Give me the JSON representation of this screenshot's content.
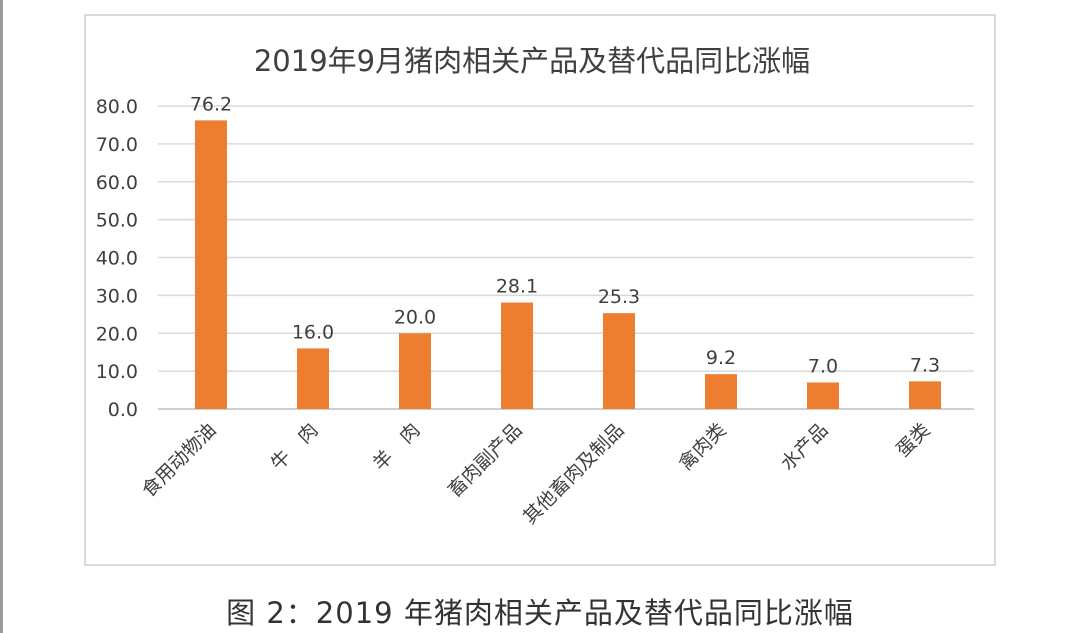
{
  "chart_data": {
    "type": "bar",
    "title": "2019年9月猪肉相关产品及替代品同比涨幅",
    "xlabel": "",
    "ylabel": "",
    "ylim": [
      0,
      80
    ],
    "yticks": [
      "0.0",
      "10.0",
      "20.0",
      "30.0",
      "40.0",
      "50.0",
      "60.0",
      "70.0",
      "80.0"
    ],
    "categories": [
      "食用动物油",
      "牛　肉",
      "羊　肉",
      "畜肉副产品",
      "其他畜肉及制品",
      "禽肉类",
      "水产品",
      "蛋类"
    ],
    "values": [
      76.2,
      16.0,
      20.0,
      28.1,
      25.3,
      9.2,
      7.0,
      7.3
    ],
    "data_labels": [
      "76.2",
      "16.0",
      "20.0",
      "28.1",
      "25.3",
      "9.2",
      "7.0",
      "7.3"
    ],
    "grid": true,
    "legend": "none",
    "bar_color": "#ed7d31"
  },
  "caption": "图 2：2019 年猪肉相关产品及替代品同比涨幅"
}
